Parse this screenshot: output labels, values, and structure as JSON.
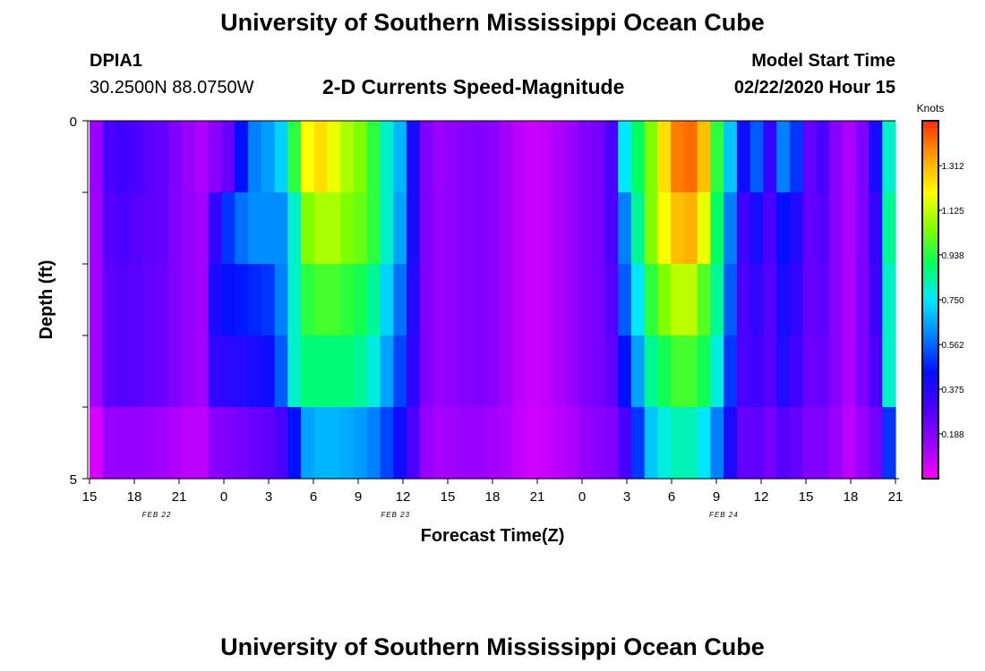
{
  "page": {
    "title": "University of Southern Mississippi Ocean Cube",
    "footer_title": "University of Southern Mississippi Ocean Cube",
    "station": "DPIA1",
    "coords": "30.2500N 88.0750W",
    "chart_title": "2-D Currents Speed-Magnitude",
    "model_start_label": "Model Start Time",
    "model_start_value": "02/22/2020 Hour 15"
  },
  "chart_data": {
    "type": "heatmap",
    "title": "2-D Currents Speed-Magnitude",
    "xlabel": "Forecast Time(Z)",
    "ylabel": "Depth (ft)",
    "x_unit": "hours since model start (02/22/2020 15Z)",
    "x_tick_labels": [
      "15",
      "18",
      "21",
      "0",
      "3",
      "6",
      "9",
      "12",
      "15",
      "18",
      "21",
      "0",
      "3",
      "6",
      "9",
      "12",
      "15",
      "18",
      "21"
    ],
    "date_labels": [
      {
        "text": "FEB 22",
        "hour": 4.5
      },
      {
        "text": "FEB 23",
        "hour": 20.5
      },
      {
        "text": "FEB 24",
        "hour": 42.5
      }
    ],
    "y_tick_labels": [
      "0",
      "5"
    ],
    "ylim": [
      0,
      5
    ],
    "xlim": [
      0,
      54
    ],
    "colorbar": {
      "label": "Knots",
      "ticks": [
        "1.312",
        "1.125",
        "0.938",
        "0.750",
        "0.562",
        "0.375",
        "0.188"
      ],
      "tick_values": [
        1.312,
        1.125,
        0.938,
        0.75,
        0.562,
        0.375,
        0.188
      ],
      "range": [
        0,
        1.5
      ],
      "colors": [
        "#ff00ff",
        "#9a00ff",
        "#4a00ff",
        "#0010ff",
        "#0080ff",
        "#00e8ff",
        "#00ff60",
        "#80ff00",
        "#ffff00",
        "#ffa000",
        "#ff3000"
      ]
    },
    "depth_bins": 5,
    "series": [
      {
        "name": "0-1 ft",
        "values": [
          0.15,
          0.3,
          0.32,
          0.3,
          0.27,
          0.25,
          0.2,
          0.15,
          0.12,
          0.18,
          0.25,
          0.45,
          0.6,
          0.64,
          0.72,
          0.95,
          1.2,
          1.25,
          1.18,
          1.1,
          1.05,
          0.95,
          0.8,
          0.68,
          0.4,
          0.2,
          0.15,
          0.17,
          0.19,
          0.2,
          0.18,
          0.14,
          0.1,
          0.08,
          0.09,
          0.12,
          0.15,
          0.2,
          0.22,
          0.3,
          0.75,
          0.9,
          1.05,
          1.25,
          1.4,
          1.42,
          1.3,
          0.95,
          0.7,
          0.42,
          0.55,
          0.35,
          0.6,
          0.5,
          0.25,
          0.3,
          0.18,
          0.12,
          0.2,
          0.4,
          0.8
        ]
      },
      {
        "name": "1-2 ft",
        "values": [
          0.14,
          0.28,
          0.3,
          0.28,
          0.26,
          0.25,
          0.2,
          0.16,
          0.14,
          0.35,
          0.5,
          0.58,
          0.62,
          0.62,
          0.62,
          0.8,
          1.05,
          1.1,
          1.1,
          1.05,
          1.02,
          0.95,
          0.8,
          0.65,
          0.4,
          0.2,
          0.16,
          0.17,
          0.19,
          0.2,
          0.18,
          0.14,
          0.1,
          0.08,
          0.09,
          0.12,
          0.15,
          0.2,
          0.22,
          0.3,
          0.6,
          0.85,
          1.05,
          1.2,
          1.3,
          1.32,
          1.18,
          0.9,
          0.6,
          0.32,
          0.4,
          0.3,
          0.45,
          0.38,
          0.25,
          0.28,
          0.18,
          0.12,
          0.2,
          0.35,
          0.85
        ]
      },
      {
        "name": "2-3 ft",
        "values": [
          0.14,
          0.26,
          0.28,
          0.27,
          0.25,
          0.24,
          0.2,
          0.16,
          0.14,
          0.4,
          0.44,
          0.46,
          0.48,
          0.5,
          0.6,
          0.8,
          0.95,
          0.98,
          0.98,
          0.95,
          0.92,
          0.85,
          0.72,
          0.58,
          0.38,
          0.2,
          0.16,
          0.17,
          0.19,
          0.2,
          0.18,
          0.14,
          0.1,
          0.08,
          0.09,
          0.12,
          0.15,
          0.2,
          0.22,
          0.28,
          0.55,
          0.75,
          0.95,
          1.05,
          1.12,
          1.12,
          1.0,
          0.85,
          0.55,
          0.3,
          0.35,
          0.28,
          0.4,
          0.35,
          0.25,
          0.26,
          0.18,
          0.12,
          0.2,
          0.32,
          0.8
        ]
      },
      {
        "name": "3-4 ft",
        "values": [
          0.14,
          0.26,
          0.28,
          0.27,
          0.25,
          0.24,
          0.2,
          0.16,
          0.14,
          0.35,
          0.36,
          0.38,
          0.4,
          0.42,
          0.55,
          0.8,
          0.88,
          0.88,
          0.88,
          0.88,
          0.85,
          0.78,
          0.65,
          0.52,
          0.36,
          0.2,
          0.16,
          0.17,
          0.19,
          0.2,
          0.18,
          0.14,
          0.1,
          0.08,
          0.09,
          0.12,
          0.15,
          0.2,
          0.22,
          0.26,
          0.45,
          0.65,
          0.85,
          0.92,
          0.98,
          0.98,
          0.92,
          0.78,
          0.5,
          0.3,
          0.32,
          0.28,
          0.38,
          0.32,
          0.24,
          0.25,
          0.18,
          0.12,
          0.2,
          0.3,
          0.8
        ]
      },
      {
        "name": "4-5 ft",
        "values": [
          0.06,
          0.15,
          0.16,
          0.16,
          0.15,
          0.14,
          0.12,
          0.1,
          0.1,
          0.18,
          0.2,
          0.22,
          0.24,
          0.26,
          0.3,
          0.45,
          0.65,
          0.68,
          0.68,
          0.66,
          0.64,
          0.6,
          0.52,
          0.42,
          0.3,
          0.16,
          0.13,
          0.14,
          0.15,
          0.15,
          0.14,
          0.12,
          0.09,
          0.07,
          0.08,
          0.1,
          0.12,
          0.16,
          0.18,
          0.2,
          0.3,
          0.5,
          0.7,
          0.78,
          0.82,
          0.82,
          0.75,
          0.6,
          0.4,
          0.25,
          0.26,
          0.22,
          0.28,
          0.25,
          0.2,
          0.2,
          0.15,
          0.1,
          0.15,
          0.22,
          0.5
        ]
      }
    ],
    "grid": false,
    "legend": "right colorbar"
  }
}
